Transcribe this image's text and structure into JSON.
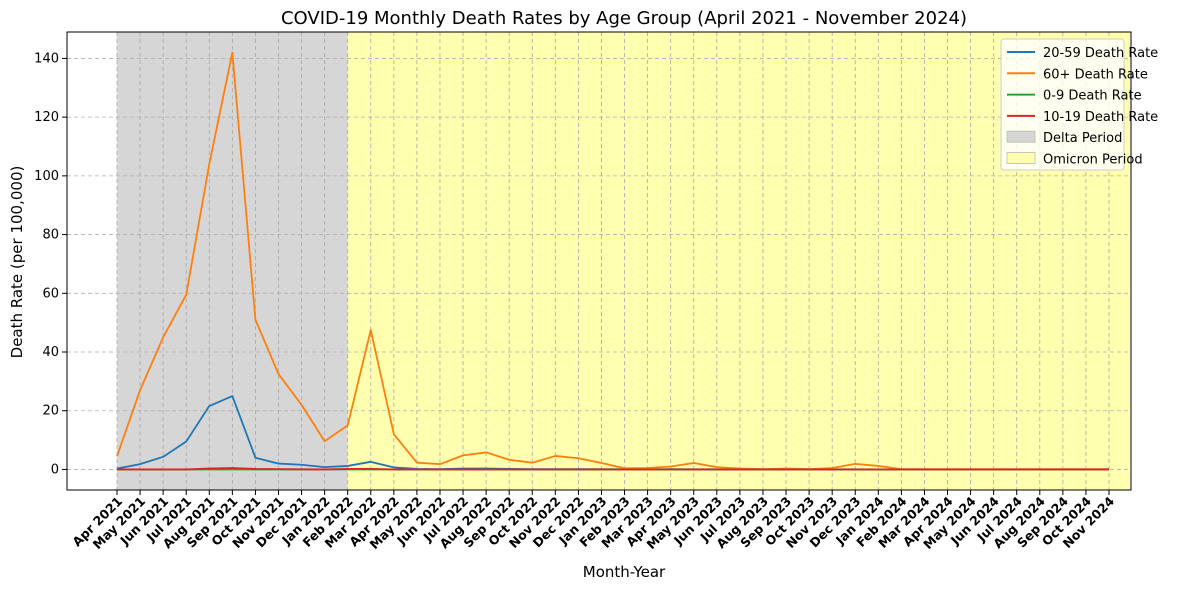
{
  "chart_data": {
    "type": "line",
    "title": "COVID-19 Monthly Death Rates by Age Group (April 2021 - November 2024)",
    "xlabel": "Month-Year",
    "ylabel": "Death Rate (per 100,000)",
    "ylim": [
      -7,
      149
    ],
    "yticks": [
      0,
      20,
      40,
      60,
      80,
      100,
      120,
      140
    ],
    "grid": true,
    "legend_position": "top-right",
    "categories": [
      "Apr 2021",
      "May 2021",
      "Jun 2021",
      "Jul 2021",
      "Aug 2021",
      "Sep 2021",
      "Oct 2021",
      "Nov 2021",
      "Dec 2021",
      "Jan 2022",
      "Feb 2022",
      "Mar 2022",
      "Apr 2022",
      "May 2022",
      "Jun 2022",
      "Jul 2022",
      "Aug 2022",
      "Sep 2022",
      "Oct 2022",
      "Nov 2022",
      "Dec 2022",
      "Jan 2023",
      "Feb 2023",
      "Mar 2023",
      "Apr 2023",
      "May 2023",
      "Jun 2023",
      "Jul 2023",
      "Aug 2023",
      "Sep 2023",
      "Oct 2023",
      "Nov 2023",
      "Dec 2023",
      "Jan 2024",
      "Feb 2024",
      "Mar 2024",
      "Apr 2024",
      "May 2024",
      "Jun 2024",
      "Jul 2024",
      "Aug 2024",
      "Sep 2024",
      "Oct 2024",
      "Nov 2024"
    ],
    "series": [
      {
        "name": "20-59 Death Rate",
        "color": "#1f77b4",
        "values": [
          0.3,
          1.8,
          4.3,
          9.5,
          21.6,
          25.0,
          4.0,
          2.0,
          1.6,
          0.8,
          1.2,
          2.6,
          0.7,
          0.2,
          0.1,
          0.3,
          0.3,
          0.2,
          0.1,
          0.1,
          0.1,
          0.1,
          0.05,
          0.05,
          0.1,
          0.05,
          0.05,
          0.02,
          0.02,
          0.02,
          0.02,
          0.05,
          0.05,
          0.02,
          0.02,
          0.02,
          0.02,
          0.02,
          0.02,
          0.02,
          0.02,
          0.02,
          0.02,
          0.02
        ]
      },
      {
        "name": "60+ Death Rate",
        "color": "#ff7f0e",
        "values": [
          4.5,
          27.0,
          45.0,
          59.5,
          104.0,
          142.0,
          51.0,
          32.5,
          22.0,
          9.6,
          15.0,
          47.5,
          12.0,
          2.3,
          1.8,
          4.8,
          5.8,
          3.3,
          2.3,
          4.6,
          3.8,
          2.2,
          0.4,
          0.5,
          1.0,
          2.2,
          0.8,
          0.3,
          0.1,
          0.3,
          0.1,
          0.5,
          1.9,
          1.2,
          0.1,
          0.1,
          0.1,
          0.1,
          0.1,
          0.1,
          0.1,
          0.1,
          0.1,
          0.1
        ]
      },
      {
        "name": "0-9 Death Rate",
        "color": "#2ca02c",
        "values": [
          0,
          0,
          0,
          0,
          0,
          0,
          0,
          0,
          0,
          0,
          0,
          0,
          0,
          0,
          0,
          0,
          0,
          0,
          0,
          0,
          0,
          0,
          0,
          0,
          0,
          0,
          0,
          0,
          0,
          0,
          0,
          0,
          0,
          0,
          0,
          0,
          0,
          0,
          0,
          0,
          0,
          0,
          0,
          0
        ]
      },
      {
        "name": "10-19 Death Rate",
        "color": "#d62728",
        "values": [
          0,
          0,
          0,
          0,
          0.3,
          0.5,
          0.2,
          0.1,
          0.05,
          0,
          0.2,
          0.2,
          0,
          0,
          0,
          0,
          0,
          0,
          0,
          0,
          0,
          0,
          0,
          0,
          0,
          0,
          0,
          0,
          0,
          0,
          0,
          0,
          0,
          0,
          0,
          0,
          0,
          0,
          0,
          0,
          0,
          0,
          0,
          0
        ]
      }
    ],
    "periods": [
      {
        "name": "Delta Period",
        "start": "Apr 2021",
        "end": "Feb 2022",
        "color": "#d6d6d6"
      },
      {
        "name": "Omicron Period",
        "start": "Feb 2022",
        "end": "Nov 2024",
        "color": "#ffffb0"
      }
    ]
  }
}
